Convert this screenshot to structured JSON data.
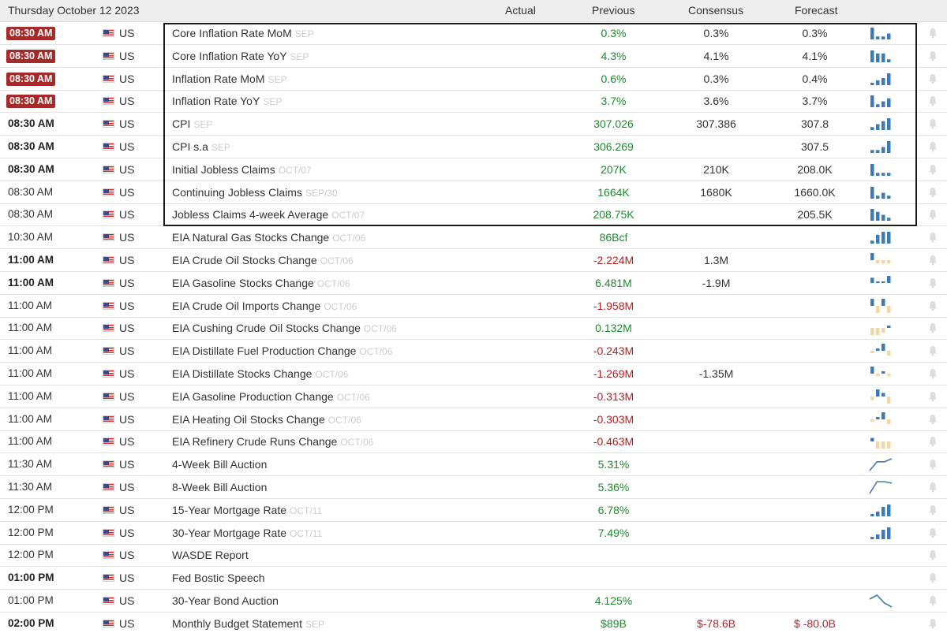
{
  "header": {
    "date": "Thursday October 12 2023",
    "col_actual": "Actual",
    "col_previous": "Previous",
    "col_consensus": "Consensus",
    "col_forecast": "Forecast"
  },
  "colors": {
    "badge": "#a52a2a",
    "positive": "#1e8a2e",
    "negative": "#b22222",
    "bar_blue": "#3d7ab8",
    "bar_beige": "#f0d7a8"
  },
  "rows": [
    {
      "time": "08:30 AM",
      "style": "badge",
      "country": "US",
      "event": "Core Inflation Rate MoM",
      "ref": "SEP",
      "actual": "",
      "previous": "0.3%",
      "previous_sign": "pos",
      "consensus": "0.3%",
      "forecast": "0.3%",
      "chart": "bars",
      "chart_values": [
        4,
        1,
        1,
        2
      ],
      "chart_color": "blue"
    },
    {
      "time": "08:30 AM",
      "style": "badge",
      "country": "US",
      "event": "Core Inflation Rate YoY",
      "ref": "SEP",
      "actual": "",
      "previous": "4.3%",
      "previous_sign": "pos",
      "consensus": "4.1%",
      "forecast": "4.1%",
      "chart": "bars",
      "chart_values": [
        4,
        3,
        3,
        1
      ],
      "chart_color": "blue"
    },
    {
      "time": "08:30 AM",
      "style": "badge",
      "country": "US",
      "event": "Inflation Rate MoM",
      "ref": "SEP",
      "actual": "",
      "previous": "0.6%",
      "previous_sign": "pos",
      "consensus": "0.3%",
      "forecast": "0.4%",
      "chart": "bars",
      "chart_values": [
        1,
        2,
        3,
        5
      ],
      "chart_color": "blue"
    },
    {
      "time": "08:30 AM",
      "style": "badge",
      "country": "US",
      "event": "Inflation Rate YoY",
      "ref": "SEP",
      "actual": "",
      "previous": "3.7%",
      "previous_sign": "pos",
      "consensus": "3.6%",
      "forecast": "3.7%",
      "chart": "bars",
      "chart_values": [
        4,
        1,
        2,
        3
      ],
      "chart_color": "blue"
    },
    {
      "time": "08:30 AM",
      "style": "bold",
      "country": "US",
      "event": "CPI",
      "ref": "SEP",
      "actual": "",
      "previous": "307.026",
      "previous_sign": "pos",
      "consensus": "307.386",
      "forecast": "307.8",
      "chart": "bars",
      "chart_values": [
        1,
        2,
        3,
        4
      ],
      "chart_color": "blue"
    },
    {
      "time": "08:30 AM",
      "style": "bold",
      "country": "US",
      "event": "CPI s.a",
      "ref": "SEP",
      "actual": "",
      "previous": "306.269",
      "previous_sign": "pos",
      "consensus": "",
      "forecast": "307.5",
      "chart": "bars",
      "chart_values": [
        1,
        1,
        2,
        4
      ],
      "chart_color": "blue"
    },
    {
      "time": "08:30 AM",
      "style": "bold",
      "country": "US",
      "event": "Initial Jobless Claims",
      "ref": "OCT/07",
      "actual": "",
      "previous": "207K",
      "previous_sign": "pos",
      "consensus": "210K",
      "forecast": "208.0K",
      "chart": "bars",
      "chart_values": [
        4,
        1,
        1,
        1
      ],
      "chart_color": "blue"
    },
    {
      "time": "08:30 AM",
      "style": "normal",
      "country": "US",
      "event": "Continuing Jobless Claims",
      "ref": "SEP/30",
      "actual": "",
      "previous": "1664K",
      "previous_sign": "pos",
      "consensus": "1680K",
      "forecast": "1660.0K",
      "chart": "bars",
      "chart_values": [
        4,
        1,
        2,
        1
      ],
      "chart_color": "blue"
    },
    {
      "time": "08:30 AM",
      "style": "normal",
      "country": "US",
      "event": "Jobless Claims 4-week Average",
      "ref": "OCT/07",
      "actual": "",
      "previous": "208.75K",
      "previous_sign": "pos",
      "consensus": "",
      "forecast": "205.5K",
      "chart": "bars",
      "chart_values": [
        4,
        3,
        2,
        1
      ],
      "chart_color": "blue"
    },
    {
      "time": "10:30 AM",
      "style": "normal",
      "country": "US",
      "event": "EIA Natural Gas Stocks Change",
      "ref": "OCT/06",
      "actual": "",
      "previous": "86Bcf",
      "previous_sign": "pos",
      "consensus": "",
      "forecast": "",
      "chart": "bars",
      "chart_values": [
        1,
        3,
        4,
        4
      ],
      "chart_color": "blue"
    },
    {
      "time": "11:00 AM",
      "style": "bold",
      "country": "US",
      "event": "EIA Crude Oil Stocks Change",
      "ref": "OCT/06",
      "actual": "",
      "previous": "-2.224M",
      "previous_sign": "neg",
      "consensus": "1.3M",
      "forecast": "",
      "chart": "posneg",
      "chart_values": [
        2,
        -1,
        -1,
        -1
      ],
      "chart_color": "mixed"
    },
    {
      "time": "11:00 AM",
      "style": "bold",
      "country": "US",
      "event": "EIA Gasoline Stocks Change",
      "ref": "OCT/06",
      "actual": "",
      "previous": "6.481M",
      "previous_sign": "pos",
      "consensus": "-1.9M",
      "forecast": "",
      "chart": "posneg",
      "chart_values": [
        3,
        0,
        0,
        4
      ],
      "chart_color": "mixed"
    },
    {
      "time": "11:00 AM",
      "style": "normal",
      "country": "US",
      "event": "EIA Crude Oil Imports Change",
      "ref": "OCT/06",
      "actual": "",
      "previous": "-1.958M",
      "previous_sign": "neg",
      "consensus": "",
      "forecast": "",
      "chart": "posneg",
      "chart_values": [
        1,
        -1,
        1,
        -1
      ],
      "chart_color": "mixed"
    },
    {
      "time": "11:00 AM",
      "style": "normal",
      "country": "US",
      "event": "EIA Cushing Crude Oil Stocks Change",
      "ref": "OCT/06",
      "actual": "",
      "previous": "0.132M",
      "previous_sign": "pos",
      "consensus": "",
      "forecast": "",
      "chart": "posneg",
      "chart_values": [
        -3,
        -3,
        -2,
        1
      ],
      "chart_color": "mixed"
    },
    {
      "time": "11:00 AM",
      "style": "normal",
      "country": "US",
      "event": "EIA Distillate Fuel Production Change",
      "ref": "OCT/06",
      "actual": "",
      "previous": "-0.243M",
      "previous_sign": "neg",
      "consensus": "",
      "forecast": "",
      "chart": "posneg",
      "chart_values": [
        -1,
        1,
        3,
        -2
      ],
      "chart_color": "mixed"
    },
    {
      "time": "11:00 AM",
      "style": "normal",
      "country": "US",
      "event": "EIA Distillate Stocks Change",
      "ref": "OCT/06",
      "actual": "",
      "previous": "-1.269M",
      "previous_sign": "neg",
      "consensus": "-1.35M",
      "forecast": "",
      "chart": "posneg",
      "chart_values": [
        3,
        -1,
        1,
        -1
      ],
      "chart_color": "mixed"
    },
    {
      "time": "11:00 AM",
      "style": "normal",
      "country": "US",
      "event": "EIA Gasoline Production Change",
      "ref": "OCT/06",
      "actual": "",
      "previous": "-0.313M",
      "previous_sign": "neg",
      "consensus": "",
      "forecast": "",
      "chart": "posneg",
      "chart_values": [
        -1,
        2,
        1,
        -2
      ],
      "chart_color": "mixed"
    },
    {
      "time": "11:00 AM",
      "style": "normal",
      "country": "US",
      "event": "EIA Heating Oil Stocks Change",
      "ref": "OCT/06",
      "actual": "",
      "previous": "-0.303M",
      "previous_sign": "neg",
      "consensus": "",
      "forecast": "",
      "chart": "posneg",
      "chart_values": [
        -1,
        1,
        3,
        -2
      ],
      "chart_color": "mixed"
    },
    {
      "time": "11:00 AM",
      "style": "normal",
      "country": "US",
      "event": "EIA Refinery Crude Runs Change",
      "ref": "OCT/06",
      "actual": "",
      "previous": "-0.463M",
      "previous_sign": "neg",
      "consensus": "",
      "forecast": "",
      "chart": "posneg",
      "chart_values": [
        1,
        -2,
        -2,
        -2
      ],
      "chart_color": "mixed"
    },
    {
      "time": "11:30 AM",
      "style": "normal",
      "country": "US",
      "event": "4-Week Bill Auction",
      "ref": "",
      "actual": "",
      "previous": "5.31%",
      "previous_sign": "pos",
      "consensus": "",
      "forecast": "",
      "chart": "line",
      "chart_values": [
        1,
        4,
        4,
        5
      ],
      "chart_color": "blue"
    },
    {
      "time": "11:30 AM",
      "style": "normal",
      "country": "US",
      "event": "8-Week Bill Auction",
      "ref": "",
      "actual": "",
      "previous": "5.36%",
      "previous_sign": "pos",
      "consensus": "",
      "forecast": "",
      "chart": "line",
      "chart_values": [
        1,
        5,
        5,
        4.5
      ],
      "chart_color": "blue"
    },
    {
      "time": "12:00 PM",
      "style": "normal",
      "country": "US",
      "event": "15-Year Mortgage Rate",
      "ref": "OCT/11",
      "actual": "",
      "previous": "6.78%",
      "previous_sign": "pos",
      "consensus": "",
      "forecast": "",
      "chart": "bars",
      "chart_values": [
        1,
        2,
        4,
        5
      ],
      "chart_color": "blue"
    },
    {
      "time": "12:00 PM",
      "style": "normal",
      "country": "US",
      "event": "30-Year Mortgage Rate",
      "ref": "OCT/11",
      "actual": "",
      "previous": "7.49%",
      "previous_sign": "pos",
      "consensus": "",
      "forecast": "",
      "chart": "bars",
      "chart_values": [
        1,
        2,
        4,
        5
      ],
      "chart_color": "blue"
    },
    {
      "time": "12:00 PM",
      "style": "normal",
      "country": "US",
      "event": "WASDE Report",
      "ref": "",
      "actual": "",
      "previous": "",
      "previous_sign": "pos",
      "consensus": "",
      "forecast": "",
      "chart": "none",
      "chart_values": [],
      "chart_color": "blue"
    },
    {
      "time": "01:00 PM",
      "style": "bold",
      "country": "US",
      "event": "Fed Bostic Speech",
      "ref": "",
      "actual": "",
      "previous": "",
      "previous_sign": "pos",
      "consensus": "",
      "forecast": "",
      "chart": "none",
      "chart_values": [],
      "chart_color": "blue"
    },
    {
      "time": "01:00 PM",
      "style": "normal",
      "country": "US",
      "event": "30-Year Bond Auction",
      "ref": "",
      "actual": "",
      "previous": "4.125%",
      "previous_sign": "pos",
      "consensus": "",
      "forecast": "",
      "chart": "line",
      "chart_values": [
        3,
        4,
        2,
        1
      ],
      "chart_color": "blue"
    },
    {
      "time": "02:00 PM",
      "style": "bold",
      "country": "US",
      "event": "Monthly Budget Statement",
      "ref": "SEP",
      "actual": "",
      "previous": "$89B",
      "previous_sign": "pos",
      "consensus": "$-78.6B",
      "consensus_sign": "neg",
      "forecast": "$ -80.0B",
      "forecast_sign": "neg",
      "chart": "none",
      "chart_values": [],
      "chart_color": "blue"
    }
  ]
}
